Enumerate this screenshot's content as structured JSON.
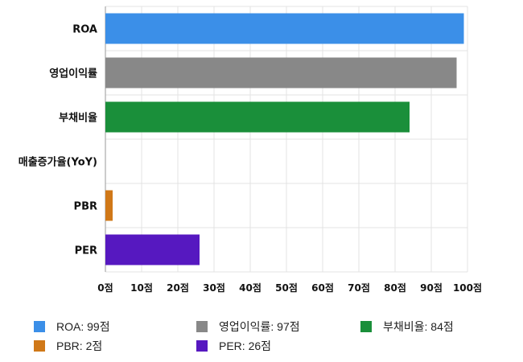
{
  "chart_data": {
    "type": "bar",
    "orientation": "horizontal",
    "categories": [
      "ROA",
      "영업이익률",
      "부채비율",
      "매출증가율(YoY)",
      "PBR",
      "PER"
    ],
    "values": [
      99,
      97,
      84,
      0,
      2,
      26
    ],
    "colors": [
      "#3b8fe8",
      "#888888",
      "#1a8f3a",
      "#d07818",
      "#d07818",
      "#5618c0"
    ],
    "xlim": [
      0,
      100
    ],
    "x_ticks": [
      "0점",
      "10점",
      "20점",
      "30점",
      "40점",
      "50점",
      "60점",
      "70점",
      "80점",
      "90점",
      "100점"
    ],
    "grid": true,
    "legend_position": "bottom",
    "legend": [
      {
        "label": "ROA: 99점",
        "color": "#3b8fe8"
      },
      {
        "label": "영업이익률: 97점",
        "color": "#888888"
      },
      {
        "label": "부채비율: 84점",
        "color": "#1a8f3a"
      },
      {
        "label": "PBR: 2점",
        "color": "#d07818"
      },
      {
        "label": "PER: 26점",
        "color": "#5618c0"
      }
    ]
  }
}
